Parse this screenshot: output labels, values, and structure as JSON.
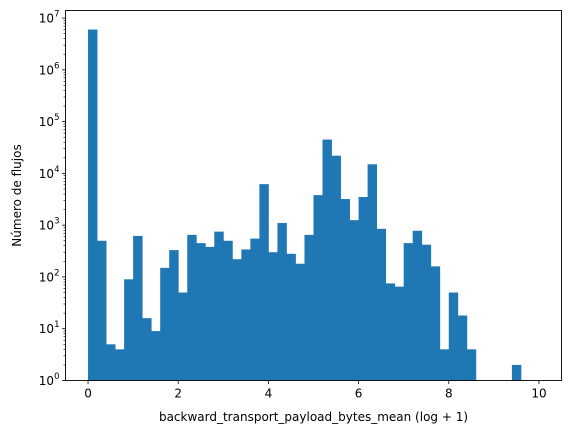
{
  "chart_data": {
    "type": "bar",
    "title": "",
    "xlabel": "backward_transport_payload_bytes_mean (log + 1)",
    "ylabel": "Número de flujos",
    "yscale": "log",
    "xlim": [
      -0.5,
      10.5
    ],
    "ylim": [
      1,
      14000000
    ],
    "grid": false,
    "bar_color": "#1f77b4",
    "bin_width": 0.2,
    "x_ticks": [
      0,
      2,
      4,
      6,
      8,
      10
    ],
    "x_tick_labels": [
      "0",
      "2",
      "4",
      "6",
      "8",
      "10"
    ],
    "y_ticks": [
      1,
      10,
      100,
      1000,
      10000,
      100000,
      1000000,
      10000000
    ],
    "y_tick_labels": [
      {
        "base": "10",
        "exp": "0"
      },
      {
        "base": "10",
        "exp": "1"
      },
      {
        "base": "10",
        "exp": "2"
      },
      {
        "base": "10",
        "exp": "3"
      },
      {
        "base": "10",
        "exp": "4"
      },
      {
        "base": "10",
        "exp": "5"
      },
      {
        "base": "10",
        "exp": "6"
      },
      {
        "base": "10",
        "exp": "7"
      }
    ],
    "bins_start": [
      0.0,
      0.2,
      0.4,
      0.6,
      0.8,
      1.0,
      1.2,
      1.4,
      1.6,
      1.8,
      2.0,
      2.2,
      2.4,
      2.6,
      2.8,
      3.0,
      3.2,
      3.4,
      3.6,
      3.8,
      4.0,
      4.2,
      4.4,
      4.6,
      4.8,
      5.0,
      5.2,
      5.4,
      5.6,
      5.8,
      6.0,
      6.2,
      6.4,
      6.6,
      6.8,
      7.0,
      7.2,
      7.4,
      7.6,
      7.8,
      8.0,
      8.2,
      8.4,
      8.6,
      8.8,
      9.0,
      9.2,
      9.4,
      9.6,
      9.8
    ],
    "values": [
      6000000,
      500,
      5,
      4,
      90,
      620,
      16,
      9,
      150,
      330,
      50,
      650,
      450,
      380,
      750,
      500,
      220,
      340,
      550,
      6200,
      300,
      1100,
      280,
      180,
      650,
      3800,
      45000,
      22000,
      3200,
      1250,
      3500,
      15000,
      850,
      75,
      65,
      450,
      780,
      420,
      160,
      4,
      50,
      18,
      4,
      0,
      0,
      0,
      0,
      2,
      0,
      0
    ]
  }
}
